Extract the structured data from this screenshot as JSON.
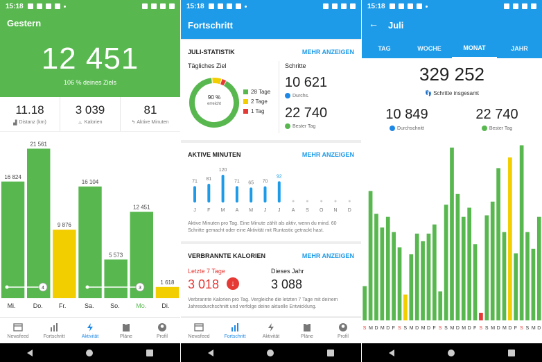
{
  "status": {
    "time": "15:18"
  },
  "screen1": {
    "title": "Gestern",
    "steps": "12 451",
    "goal_text": "106 % deines Ziels",
    "stats": [
      {
        "value": "11.18",
        "label": "Distanz (km)",
        "icon": "road-icon"
      },
      {
        "value": "3 039",
        "label": "Kalorien",
        "icon": "flame-icon"
      },
      {
        "value": "81",
        "label": "Aktive Minuten",
        "icon": "bolt-icon"
      }
    ],
    "chart_data": {
      "type": "bar",
      "categories": [
        "Mi.",
        "Do.",
        "Fr.",
        "Sa.",
        "So.",
        "Mo.",
        "Di."
      ],
      "values": [
        16824,
        21561,
        9876,
        16104,
        5573,
        12451,
        1618
      ],
      "value_labels": [
        "16 824",
        "21 561",
        "9 876",
        "16 104",
        "5 573",
        "12 451",
        "1 618"
      ],
      "goal_markers": [
        "4",
        "3"
      ],
      "colors": [
        "#58b84f",
        "#58b84f",
        "#f2cd00",
        "#58b84f",
        "#58b84f",
        "#58b84f",
        "#f2cd00"
      ],
      "ylim": [
        0,
        23000
      ]
    }
  },
  "screen2": {
    "title": "Fortschritt",
    "card1": {
      "title": "JULI-STATISTIK",
      "link": "MEHR ANZEIGEN",
      "goal_label": "Tägliches Ziel",
      "donut_pct": "90 %",
      "donut_sub": "erreicht",
      "legend": [
        {
          "label": "28 Tage",
          "color": "#58b84f"
        },
        {
          "label": "2 Tage",
          "color": "#f2cd00"
        },
        {
          "label": "1 Tag",
          "color": "#e53935"
        }
      ],
      "steps_label": "Schritte",
      "avg_value": "10 621",
      "avg_label": "Durchs.",
      "best_value": "22 740",
      "best_label": "Bester Tag",
      "donut_slices": [
        28,
        2,
        1
      ]
    },
    "card2": {
      "title": "AKTIVE MINUTEN",
      "link": "MEHR ANZEIGEN",
      "chart_data": {
        "type": "bar",
        "categories": [
          "J",
          "F",
          "M",
          "A",
          "M",
          "J",
          "J",
          "A",
          "S",
          "O",
          "N",
          "D"
        ],
        "values": [
          71,
          81,
          120,
          71,
          65,
          70,
          92,
          null,
          null,
          null,
          null,
          null
        ],
        "value_labels": [
          "71",
          "81",
          "120",
          "71",
          "65",
          "70",
          "92",
          "",
          "",
          "",
          "",
          ""
        ]
      },
      "desc": "Aktive Minuten pro Tag. Eine Minute zählt als aktiv, wenn du mind. 60 Schritte gemacht oder eine Aktivität mit Runtastic getrackt hast."
    },
    "card3": {
      "title": "VERBRANNTE KALORIEN",
      "link": "MEHR ANZEIGEN",
      "last7_label": "Letzte 7 Tage",
      "last7_value": "3 018",
      "year_label": "Dieses Jahr",
      "year_value": "3 088",
      "desc": "Verbrannte Kalorien pro Tag. Vergleiche die letzten 7 Tage mit deinem Jahresdurchschnitt und verfolge deine aktuelle Entwicklung."
    }
  },
  "screen3": {
    "title": "Juli",
    "tabs": [
      "TAG",
      "WOCHE",
      "MONAT",
      "JAHR"
    ],
    "active_tab": "MONAT",
    "total": "329 252",
    "total_label": "Schritte insgesamt",
    "avg_value": "10 849",
    "avg_label": "Durchschnitt",
    "best_value": "22 740",
    "best_label": "Bester Tag",
    "chart_data": {
      "type": "bar",
      "categories": [
        "S",
        "M",
        "D",
        "M",
        "D",
        "F",
        "S",
        "S",
        "M",
        "D",
        "M",
        "D",
        "F",
        "S",
        "S",
        "M",
        "D",
        "M",
        "D",
        "F",
        "S",
        "S",
        "M",
        "D",
        "M",
        "D",
        "F",
        "S",
        "S",
        "M",
        "D"
      ],
      "values": [
        4500,
        17000,
        14000,
        12200,
        13600,
        11600,
        9600,
        3400,
        8700,
        11400,
        10400,
        11400,
        12600,
        3800,
        15200,
        22700,
        16600,
        13600,
        14800,
        10000,
        1000,
        13800,
        15600,
        20000,
        11600,
        21400,
        8800,
        23000,
        11600,
        9400,
        13600
      ],
      "colors": [
        "#58b84f",
        "#58b84f",
        "#58b84f",
        "#58b84f",
        "#58b84f",
        "#58b84f",
        "#58b84f",
        "#f2cd00",
        "#58b84f",
        "#58b84f",
        "#58b84f",
        "#58b84f",
        "#58b84f",
        "#58b84f",
        "#58b84f",
        "#58b84f",
        "#58b84f",
        "#58b84f",
        "#58b84f",
        "#58b84f",
        "#e53935",
        "#58b84f",
        "#58b84f",
        "#58b84f",
        "#58b84f",
        "#f2cd00",
        "#58b84f",
        "#58b84f",
        "#58b84f",
        "#58b84f",
        "#58b84f"
      ],
      "ylim": [
        0,
        23500
      ]
    }
  },
  "bottomnav": [
    {
      "label": "Newsfeed",
      "icon": "newsfeed-icon"
    },
    {
      "label": "Fortschritt",
      "icon": "chart-icon"
    },
    {
      "label": "Aktivität",
      "icon": "bolt-icon"
    },
    {
      "label": "Pläne",
      "icon": "clipboard-icon"
    },
    {
      "label": "Profil",
      "icon": "profile-icon"
    }
  ]
}
